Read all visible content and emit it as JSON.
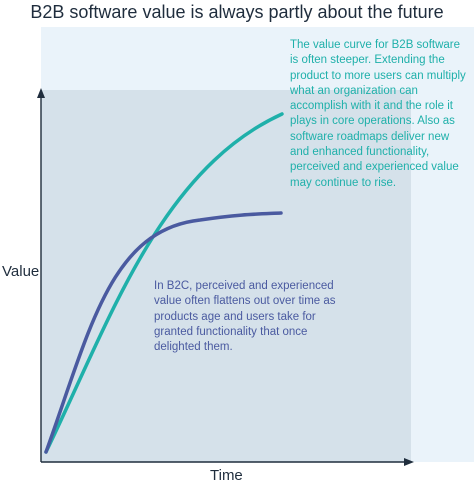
{
  "title": "B2B software value is always partly about the future",
  "axes": {
    "y_label": "Value",
    "x_label": "Time"
  },
  "annotations": {
    "b2b": "The value curve for B2B software is often steeper. Extending the product to more users can multiply what an organization can accomplish with it and the role it plays in core operations. Also as software roadmaps deliver new and enhanced functionality, perceived and experienced value may continue to rise.",
    "b2c": "In B2C, perceived and experienced value often flattens out over time as products age and users take for granted functionality that once delighted them."
  },
  "colors": {
    "b2b_curve": "#1fb0aa",
    "b2c_curve": "#4a5aa0",
    "axis": "#1f2d3d",
    "panel_dark": "#d5e1ea",
    "panel_light": "#eaf3fa"
  }
}
